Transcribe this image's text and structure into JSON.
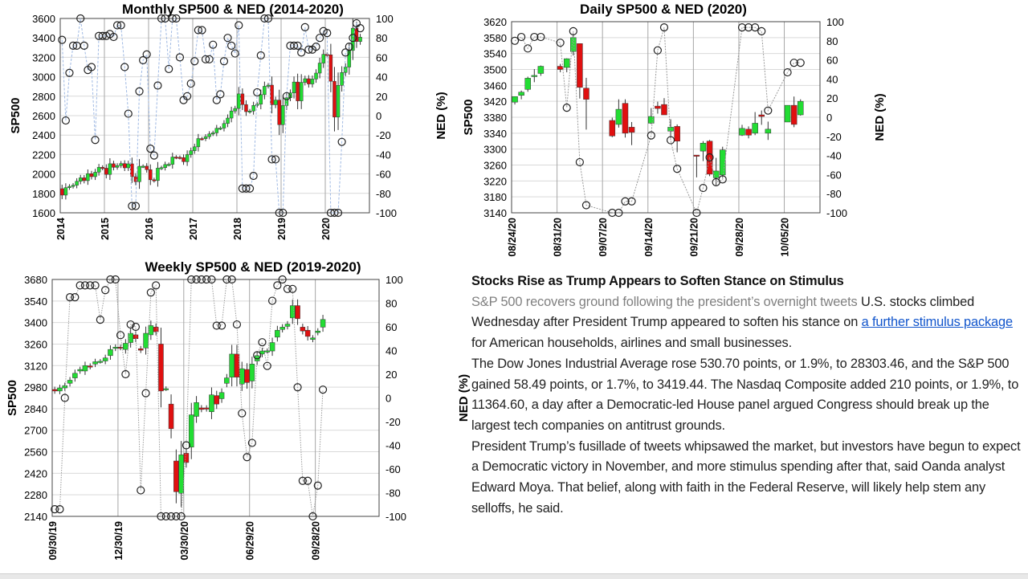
{
  "chart_data": [
    {
      "id": "monthly",
      "type": "candlestick+line",
      "title": "Monthly SP500 & NED (2014-2020)",
      "ylabel": "SP500",
      "y2label": "NED (%)",
      "ylim": [
        1600,
        3600
      ],
      "y2lim": [
        -100,
        100
      ],
      "yticks": [
        1600,
        1800,
        2000,
        2200,
        2400,
        2600,
        2800,
        3000,
        3200,
        3400,
        3600
      ],
      "y2ticks": [
        -100,
        -80,
        -60,
        -40,
        -20,
        0,
        20,
        40,
        60,
        80,
        100
      ],
      "xunit": "month index from Jan 2014",
      "xlim": [
        0,
        84
      ],
      "xticks": [
        {
          "label": "2014",
          "at": 0
        },
        {
          "label": "2015",
          "at": 12
        },
        {
          "label": "2016",
          "at": 24
        },
        {
          "label": "2017",
          "at": 36
        },
        {
          "label": "2018",
          "at": 48
        },
        {
          "label": "2019",
          "at": 60
        },
        {
          "label": "2020",
          "at": 72
        }
      ],
      "first_open": 1848,
      "close": [
        1782,
        1859,
        1872,
        1884,
        1924,
        1960,
        1931,
        2003,
        1972,
        2018,
        2068,
        2059,
        1995,
        2105,
        2068,
        2086,
        2107,
        2063,
        2104,
        1972,
        1920,
        2079,
        2080,
        2044,
        1940,
        1932,
        2060,
        2065,
        2097,
        2099,
        2174,
        2171,
        2168,
        2126,
        2199,
        2239,
        2279,
        2364,
        2363,
        2384,
        2412,
        2423,
        2470,
        2472,
        2519,
        2575,
        2648,
        2674,
        2824,
        2714,
        2641,
        2648,
        2705,
        2718,
        2816,
        2902,
        2914,
        2712,
        2760,
        2507,
        2704,
        2784,
        2834,
        2946,
        2752,
        2942,
        2980,
        2926,
        2977,
        3038,
        3141,
        3231,
        3226,
        2954,
        2585,
        2912,
        3044,
        3100,
        3271,
        3500,
        3363,
        3408
      ],
      "ned": [
        78,
        -5,
        44,
        72,
        72,
        100,
        72,
        47,
        50,
        -25,
        82,
        82,
        82,
        84,
        81,
        93,
        93,
        50,
        2,
        -93,
        -93,
        25,
        57,
        63,
        -34,
        -41,
        31,
        100,
        100,
        48,
        100,
        100,
        60,
        16,
        20,
        33,
        56,
        88,
        88,
        58,
        58,
        73,
        16,
        22,
        56,
        80,
        72,
        64,
        93,
        -75,
        -75,
        -75,
        -62,
        24,
        62,
        100,
        100,
        -45,
        -45,
        -100,
        -100,
        20,
        72,
        72,
        72,
        65,
        91,
        68,
        68,
        71,
        80,
        87,
        85,
        -100,
        -100,
        -100,
        -27,
        65,
        71,
        80,
        95,
        90
      ],
      "colors": {
        "up": "#22dd33",
        "down": "#e01010",
        "ned_line": "#9fb9e3"
      }
    },
    {
      "id": "daily",
      "type": "candlestick+line",
      "title": "Daily SP500 & NED (2020)",
      "ylabel": "SP500",
      "y2label": "NED (%)",
      "ylim": [
        3140,
        3620
      ],
      "y2lim": [
        -100,
        100
      ],
      "yticks": [
        3140,
        3180,
        3220,
        3260,
        3300,
        3340,
        3380,
        3420,
        3460,
        3500,
        3540,
        3580,
        3620
      ],
      "y2ticks": [
        -100,
        -80,
        -60,
        -40,
        -20,
        0,
        20,
        40,
        60,
        80,
        100
      ],
      "xunit": "calendar day from 08/24/20",
      "xlim": [
        0,
        47.5
      ],
      "xticks": [
        {
          "label": "08/24/20",
          "at": 0
        },
        {
          "label": "08/31/20",
          "at": 7
        },
        {
          "label": "09/07/20",
          "at": 14
        },
        {
          "label": "09/14/20",
          "at": 21
        },
        {
          "label": "09/21/20",
          "at": 28
        },
        {
          "label": "09/28/20",
          "at": 35
        },
        {
          "label": "10/05/20",
          "at": 42
        }
      ],
      "candles": [
        {
          "day": 0,
          "o": 3418,
          "h": 3432,
          "l": 3412,
          "c": 3432
        },
        {
          "day": 1,
          "o": 3435,
          "h": 3447,
          "l": 3425,
          "c": 3443
        },
        {
          "day": 2,
          "o": 3450,
          "h": 3482,
          "l": 3444,
          "c": 3478
        },
        {
          "day": 3,
          "o": 3485,
          "h": 3501,
          "l": 3468,
          "c": 3485
        },
        {
          "day": 4,
          "o": 3490,
          "h": 3510,
          "l": 3484,
          "c": 3508
        },
        {
          "day": 7,
          "o": 3508,
          "h": 3514,
          "l": 3493,
          "c": 3500
        },
        {
          "day": 8,
          "o": 3505,
          "h": 3528,
          "l": 3493,
          "c": 3527
        },
        {
          "day": 9,
          "o": 3545,
          "h": 3588,
          "l": 3535,
          "c": 3580
        },
        {
          "day": 10,
          "o": 3565,
          "h": 3565,
          "l": 3427,
          "c": 3455
        },
        {
          "day": 11,
          "o": 3453,
          "h": 3479,
          "l": 3349,
          "c": 3425
        },
        {
          "day": 15,
          "o": 3372,
          "h": 3379,
          "l": 3330,
          "c": 3333
        },
        {
          "day": 16,
          "o": 3362,
          "h": 3425,
          "l": 3354,
          "c": 3400
        },
        {
          "day": 17,
          "o": 3415,
          "h": 3425,
          "l": 3329,
          "c": 3340
        },
        {
          "day": 18,
          "o": 3355,
          "h": 3368,
          "l": 3310,
          "c": 3342
        },
        {
          "day": 21,
          "o": 3365,
          "h": 3403,
          "l": 3363,
          "c": 3382
        },
        {
          "day": 22,
          "o": 3408,
          "h": 3419,
          "l": 3389,
          "c": 3402
        },
        {
          "day": 23,
          "o": 3412,
          "h": 3428,
          "l": 3386,
          "c": 3386
        },
        {
          "day": 24,
          "o": 3345,
          "h": 3375,
          "l": 3328,
          "c": 3355
        },
        {
          "day": 25,
          "o": 3357,
          "h": 3362,
          "l": 3292,
          "c": 3320
        },
        {
          "day": 28,
          "o": 3285,
          "h": 3285,
          "l": 3229,
          "c": 3282
        },
        {
          "day": 29,
          "o": 3295,
          "h": 3320,
          "l": 3270,
          "c": 3315
        },
        {
          "day": 30,
          "o": 3320,
          "h": 3323,
          "l": 3232,
          "c": 3237
        },
        {
          "day": 31,
          "o": 3228,
          "h": 3278,
          "l": 3209,
          "c": 3245
        },
        {
          "day": 32,
          "o": 3235,
          "h": 3306,
          "l": 3228,
          "c": 3298
        },
        {
          "day": 35,
          "o": 3335,
          "h": 3361,
          "l": 3333,
          "c": 3352
        },
        {
          "day": 36,
          "o": 3350,
          "h": 3357,
          "l": 3327,
          "c": 3335
        },
        {
          "day": 37,
          "o": 3340,
          "h": 3393,
          "l": 3335,
          "c": 3365
        },
        {
          "day": 38,
          "o": 3386,
          "h": 3397,
          "l": 3361,
          "c": 3382
        },
        {
          "day": 39,
          "o": 3340,
          "h": 3369,
          "l": 3323,
          "c": 3350
        },
        {
          "day": 42,
          "o": 3368,
          "h": 3410,
          "l": 3368,
          "c": 3410
        },
        {
          "day": 43,
          "o": 3410,
          "h": 3432,
          "l": 3355,
          "c": 3362
        },
        {
          "day": 44,
          "o": 3386,
          "h": 3425,
          "l": 3384,
          "c": 3420
        }
      ],
      "ned": [
        80,
        84,
        72,
        84,
        84,
        78,
        10,
        90,
        -47,
        -92,
        -100,
        -100,
        -88,
        -88,
        -19,
        70,
        94,
        -24,
        -54,
        -100,
        -74,
        -42,
        -68,
        -65,
        94,
        94,
        94,
        90,
        7,
        47,
        57,
        57
      ],
      "colors": {
        "up": "#22dd33",
        "down": "#e01010",
        "ned_line": "#9a9a9a"
      }
    },
    {
      "id": "weekly",
      "type": "candlestick+line",
      "title": "Weekly SP500 & NED (2019-2020)",
      "ylabel": "SP500",
      "y2label": "NED (%)",
      "ylim": [
        2140,
        3680
      ],
      "y2lim": [
        -100,
        100
      ],
      "yticks": [
        2140,
        2280,
        2420,
        2560,
        2700,
        2840,
        2980,
        3120,
        3260,
        3400,
        3540,
        3680
      ],
      "y2ticks": [
        -100,
        -80,
        -60,
        -40,
        -20,
        0,
        20,
        40,
        60,
        80,
        100
      ],
      "xunit": "week from 09/30/19",
      "xlim": [
        0,
        64.6
      ],
      "xticks": [
        {
          "label": "09/30/19",
          "at": 0
        },
        {
          "label": "12/30/19",
          "at": 13
        },
        {
          "label": "03/30/20",
          "at": 26
        },
        {
          "label": "06/29/20",
          "at": 39
        },
        {
          "label": "09/28/20",
          "at": 52
        }
      ],
      "oc": [
        [
          2965,
          2955
        ],
        [
          2955,
          2975
        ],
        [
          2975,
          2990
        ],
        [
          3005,
          3025
        ],
        [
          3040,
          3070
        ],
        [
          3085,
          3095
        ],
        [
          3085,
          3120
        ],
        [
          3118,
          3112
        ],
        [
          3130,
          3145
        ],
        [
          3148,
          3148
        ],
        [
          3150,
          3170
        ],
        [
          3185,
          3225
        ],
        [
          3232,
          3240
        ],
        [
          3240,
          3236
        ],
        [
          3225,
          3265
        ],
        [
          3270,
          3330
        ],
        [
          3320,
          3295
        ],
        [
          3230,
          3220
        ],
        [
          3235,
          3330
        ],
        [
          3320,
          3380
        ],
        [
          3370,
          3340
        ],
        [
          3260,
          2955
        ],
        [
          2970,
          2970
        ],
        [
          2870,
          2710
        ],
        [
          2500,
          2300
        ],
        [
          2290,
          2540
        ],
        [
          2550,
          2490
        ],
        [
          2590,
          2800
        ],
        [
          2790,
          2880
        ],
        [
          2845,
          2835
        ],
        [
          2845,
          2838
        ],
        [
          2820,
          2930
        ],
        [
          2925,
          2870
        ],
        [
          2905,
          2945
        ],
        [
          3005,
          3040
        ],
        [
          3045,
          3195
        ],
        [
          3195,
          3045
        ],
        [
          3000,
          3100
        ],
        [
          3095,
          3010
        ],
        [
          3020,
          3130
        ],
        [
          3150,
          3185
        ],
        [
          3195,
          3215
        ],
        [
          3214,
          3216
        ],
        [
          3215,
          3270
        ],
        [
          3305,
          3350
        ],
        [
          3355,
          3370
        ],
        [
          3375,
          3390
        ],
        [
          3430,
          3510
        ],
        [
          3510,
          3425
        ],
        [
          3370,
          3345
        ],
        [
          3350,
          3310
        ],
        [
          3290,
          3300
        ],
        [
          3335,
          3345
        ],
        [
          3370,
          3420
        ]
      ],
      "ned": [
        -94,
        -94,
        0,
        85,
        85,
        95,
        95,
        95,
        95,
        66,
        91,
        100,
        100,
        53,
        20,
        62,
        60,
        -78,
        4,
        89,
        95,
        -100,
        -100,
        -100,
        -100,
        -100,
        -40,
        100,
        100,
        100,
        100,
        100,
        61,
        61,
        100,
        100,
        62,
        -13,
        -50,
        -38,
        36,
        47,
        27,
        82,
        95,
        100,
        92,
        92,
        9,
        -70,
        -70,
        -100,
        -74,
        7
      ],
      "colors": {
        "up": "#22dd33",
        "down": "#e01010",
        "ned_line": "#9a9a9a"
      }
    }
  ],
  "article": {
    "headline": "Stocks Rise as Trump Appears to Soften Stance on Stimulus",
    "subhead": "S&P 500 recovers ground following the president’s overnight tweets",
    "p1_start": " U.S. stocks climbed Wednesday after President Trump appeared to soften his stance on ",
    "p1_link": "a further stimulus package",
    "p1_end": " for American households, airlines and small businesses.",
    "p2": "The Dow Jones Industrial Average rose 530.70 points, or 1.9%, to 28303.46, and the S&P 500 gained 58.49 points, or 1.7%, to 3419.44. The Nasdaq Composite added 210 points, or 1.9%, to 11364.60, a day after a Democratic-led House panel argued Congress should break up the largest tech companies on antitrust grounds.",
    "p3": "President Trump’s fusillade of tweets whipsawed the market, but investors have begun to expect a Democratic victory in November, and more stimulus spending after that, said Oanda analyst Edward Moya. That belief, along with faith in the Federal Reserve, will likely help stem any selloffs, he said."
  }
}
